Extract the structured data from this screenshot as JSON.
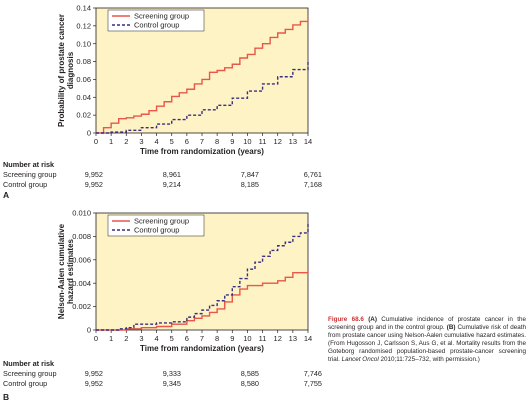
{
  "chart_data": [
    {
      "panel": "A",
      "type": "line",
      "ylabel": "Probability of prostate cancer diagnosis",
      "xlabel": "Time from randomization (years)",
      "ylim": [
        0,
        0.14
      ],
      "yticks": [
        "0",
        "0.02",
        "0.04",
        "0.06",
        "0.08",
        "0.10",
        "0.12",
        "0.14"
      ],
      "xlim": [
        0,
        14
      ],
      "xticks": [
        "0",
        "1",
        "2",
        "3",
        "4",
        "5",
        "6",
        "7",
        "8",
        "9",
        "10",
        "11",
        "12",
        "13",
        "14"
      ],
      "legend_position": "top-left",
      "grid": false,
      "series": [
        {
          "name": "Screening group",
          "style": "solid",
          "color": "#e8574a",
          "points": [
            [
              0,
              0
            ],
            [
              0.5,
              0.006
            ],
            [
              1,
              0.011
            ],
            [
              1.5,
              0.016
            ],
            [
              2,
              0.017
            ],
            [
              2.5,
              0.019
            ],
            [
              3,
              0.021
            ],
            [
              3.5,
              0.025
            ],
            [
              4,
              0.03
            ],
            [
              4.5,
              0.035
            ],
            [
              5,
              0.041
            ],
            [
              5.5,
              0.045
            ],
            [
              6,
              0.049
            ],
            [
              6.5,
              0.055
            ],
            [
              7,
              0.06
            ],
            [
              7.5,
              0.068
            ],
            [
              8,
              0.07
            ],
            [
              8.5,
              0.073
            ],
            [
              9,
              0.077
            ],
            [
              9.5,
              0.084
            ],
            [
              10,
              0.088
            ],
            [
              10.5,
              0.095
            ],
            [
              11,
              0.1
            ],
            [
              11.5,
              0.107
            ],
            [
              12,
              0.112
            ],
            [
              12.5,
              0.116
            ],
            [
              13,
              0.121
            ],
            [
              13.5,
              0.125
            ],
            [
              14,
              0.128
            ]
          ]
        },
        {
          "name": "Control group",
          "style": "dashed",
          "color": "#3b2d80",
          "points": [
            [
              0,
              0
            ],
            [
              1,
              0.001
            ],
            [
              2,
              0.003
            ],
            [
              3,
              0.006
            ],
            [
              4,
              0.01
            ],
            [
              5,
              0.015
            ],
            [
              6,
              0.02
            ],
            [
              7,
              0.026
            ],
            [
              8,
              0.031
            ],
            [
              9,
              0.039
            ],
            [
              10,
              0.047
            ],
            [
              11,
              0.055
            ],
            [
              12,
              0.063
            ],
            [
              13,
              0.071
            ],
            [
              14,
              0.081
            ]
          ]
        }
      ],
      "number_at_risk": {
        "header": "Number at risk",
        "years": [
          0,
          5,
          10,
          14
        ],
        "rows": [
          {
            "group": "Screening group",
            "values": [
              "9,952",
              "8,961",
              "7,847",
              "6,761"
            ]
          },
          {
            "group": "Control group",
            "values": [
              "9,952",
              "9,214",
              "8,185",
              "7,168"
            ]
          }
        ]
      }
    },
    {
      "panel": "B",
      "type": "line",
      "ylabel": "Nelson-Aalen cumulative hazard estimates",
      "xlabel": "Time from randomization (years)",
      "ylim": [
        0,
        0.01
      ],
      "yticks": [
        "0",
        "0.002",
        "0.004",
        "0.006",
        "0.008",
        "0.010"
      ],
      "xlim": [
        0,
        14
      ],
      "xticks": [
        "0",
        "1",
        "2",
        "3",
        "4",
        "5",
        "6",
        "7",
        "8",
        "9",
        "10",
        "11",
        "12",
        "13",
        "14"
      ],
      "legend_position": "top-left",
      "grid": false,
      "series": [
        {
          "name": "Screening group",
          "style": "solid",
          "color": "#e8574a",
          "points": [
            [
              0,
              0
            ],
            [
              2,
              0.0001
            ],
            [
              3,
              0.0002
            ],
            [
              4,
              0.0003
            ],
            [
              5,
              0.0005
            ],
            [
              6,
              0.0008
            ],
            [
              6.5,
              0.001
            ],
            [
              7,
              0.0012
            ],
            [
              7.5,
              0.0015
            ],
            [
              8,
              0.0018
            ],
            [
              8.5,
              0.0024
            ],
            [
              9,
              0.003
            ],
            [
              9.5,
              0.0035
            ],
            [
              10,
              0.0038
            ],
            [
              11,
              0.004
            ],
            [
              12,
              0.0042
            ],
            [
              12.5,
              0.0045
            ],
            [
              13,
              0.0049
            ],
            [
              14,
              0.0051
            ]
          ]
        },
        {
          "name": "Control group",
          "style": "dashed",
          "color": "#3b2d80",
          "points": [
            [
              0,
              0
            ],
            [
              1.5,
              0.0001
            ],
            [
              2,
              0.0002
            ],
            [
              2.5,
              0.0005
            ],
            [
              3,
              0.0005
            ],
            [
              4,
              0.0006
            ],
            [
              5,
              0.0007
            ],
            [
              6,
              0.0011
            ],
            [
              6.5,
              0.0014
            ],
            [
              7,
              0.0017
            ],
            [
              7.5,
              0.0021
            ],
            [
              8,
              0.0025
            ],
            [
              8.5,
              0.003
            ],
            [
              9,
              0.0037
            ],
            [
              9.5,
              0.0044
            ],
            [
              10,
              0.0052
            ],
            [
              10.5,
              0.0058
            ],
            [
              11,
              0.0063
            ],
            [
              11.5,
              0.0068
            ],
            [
              12,
              0.0072
            ],
            [
              12.5,
              0.0075
            ],
            [
              13,
              0.008
            ],
            [
              13.5,
              0.0083
            ],
            [
              14,
              0.0091
            ]
          ]
        }
      ],
      "number_at_risk": {
        "header": "Number at risk",
        "years": [
          0,
          5,
          10,
          14
        ],
        "rows": [
          {
            "group": "Screening group",
            "values": [
              "9,952",
              "9,333",
              "8,585",
              "7,746"
            ]
          },
          {
            "group": "Control group",
            "values": [
              "9,952",
              "9,345",
              "8,580",
              "7,755"
            ]
          }
        ]
      }
    }
  ],
  "colors": {
    "plot_background": "#fdf3c5",
    "screening": "#e8574a",
    "control": "#3b2d80",
    "caption_label": "#cc3333"
  },
  "caption": {
    "label": "Figure 68.6",
    "text_a": "(A)",
    "text_1": " Cumulative incidence of prostate cancer in the screening group and in the control group. ",
    "text_b": "(B)",
    "text_2": " Cumulative risk of death from prostate cancer using Nelson-Aalen cumulative hazard estimates. (From Hugosson J, Carlsson S, Aus G, et al. Mortality results from the Goteborg randomised population-based prostate-cancer screening trial. ",
    "journal": "Lancet Oncol",
    "text_3": " 2010;11:725–732, with permission.)"
  }
}
